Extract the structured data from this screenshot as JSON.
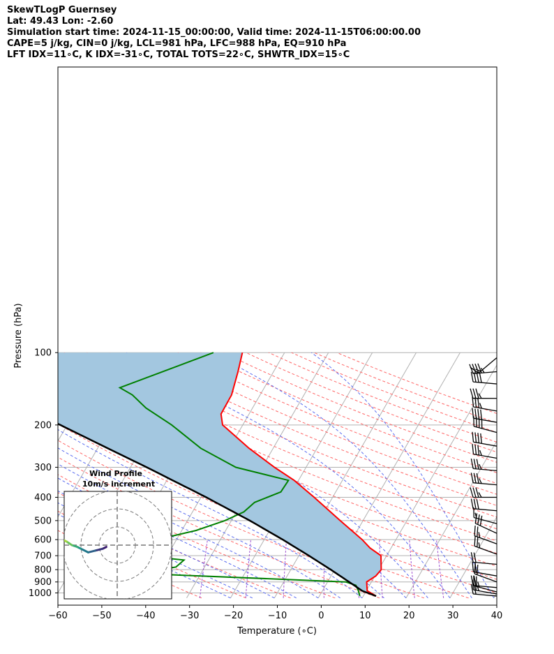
{
  "header": {
    "line1": "SkewTLogP Guernsey",
    "line2": "Lat: 49.43   Lon: -2.60",
    "line3": "Simulation start time: 2024-11-15_00:00:00, Valid time: 2024-11-15T06:00:00.00",
    "line4": "CAPE=5 j/kg, CIN=0 j/kg, LCL=981 hPa, LFC=988 hPa, EQ=910 hPa",
    "line5": "LFT IDX=11∘C, K IDX=-31∘C, TOTAL TOTS=22∘C, SHWTR_IDX=15∘C"
  },
  "colors": {
    "temperature": "#ff0000",
    "dewpoint": "#008000",
    "parcel": "#000000",
    "cape_fill": "#a3c7e0",
    "dry_adiabat": "#ff6666",
    "moist_adiabat": "#5a6cf0",
    "mixing_ratio": "#a050d0",
    "isotherm": "#b0b0b0"
  },
  "chart_data": {
    "type": "skew-t log-p",
    "xlabel": "Temperature (∘C)",
    "ylabel": "Pressure (hPa)",
    "xlim": [
      -60,
      40
    ],
    "ylim": [
      1050,
      100
    ],
    "y_scale": "log",
    "grid": true,
    "x_ticks": [
      "−60",
      "−50",
      "−40",
      "−30",
      "−20",
      "−10",
      "0",
      "10",
      "20",
      "30",
      "40"
    ],
    "y_ticks": [
      "100",
      "200",
      "300",
      "400",
      "500",
      "600",
      "700",
      "800",
      "900",
      "1000"
    ],
    "temperature_profile": [
      {
        "p": 1030,
        "t": 12.9
      },
      {
        "p": 980,
        "t": 10.2
      },
      {
        "p": 900,
        "t": 8.9
      },
      {
        "p": 850,
        "t": 10.2
      },
      {
        "p": 800,
        "t": 10.6
      },
      {
        "p": 700,
        "t": 8.7
      },
      {
        "p": 650,
        "t": 5.2
      },
      {
        "p": 600,
        "t": 2.3
      },
      {
        "p": 500,
        "t": -5.2
      },
      {
        "p": 400,
        "t": -14.2
      },
      {
        "p": 340,
        "t": -21.0
      },
      {
        "p": 300,
        "t": -27.2
      },
      {
        "p": 250,
        "t": -35.5
      },
      {
        "p": 200,
        "t": -44.6
      },
      {
        "p": 180,
        "t": -46.4
      },
      {
        "p": 150,
        "t": -46.5
      },
      {
        "p": 120,
        "t": -48.1
      },
      {
        "p": 100,
        "t": -49.6
      }
    ],
    "dewpoint_profile": [
      {
        "p": 1030,
        "t": 9.2
      },
      {
        "p": 980,
        "t": 8.2
      },
      {
        "p": 930,
        "t": 6.9
      },
      {
        "p": 900,
        "t": 4.1
      },
      {
        "p": 830,
        "t": -44.0
      },
      {
        "p": 780,
        "t": -36.5
      },
      {
        "p": 730,
        "t": -35.6
      },
      {
        "p": 700,
        "t": -45.2
      },
      {
        "p": 640,
        "t": -52.1
      },
      {
        "p": 600,
        "t": -44.5
      },
      {
        "p": 550,
        "t": -36.8
      },
      {
        "p": 500,
        "t": -31.5
      },
      {
        "p": 460,
        "t": -28.3
      },
      {
        "p": 420,
        "t": -27.1
      },
      {
        "p": 380,
        "t": -22.5
      },
      {
        "p": 340,
        "t": -22.3
      },
      {
        "p": 300,
        "t": -36.0
      },
      {
        "p": 250,
        "t": -46.5
      },
      {
        "p": 200,
        "t": -56.2
      },
      {
        "p": 170,
        "t": -64.3
      },
      {
        "p": 150,
        "t": -69.1
      },
      {
        "p": 140,
        "t": -72.9
      },
      {
        "p": 100,
        "t": -56.2
      }
    ],
    "parcel_profile": [
      {
        "p": 1030,
        "t": 12.9
      },
      {
        "p": 981,
        "t": 9.1
      },
      {
        "p": 900,
        "t": 4.9
      },
      {
        "p": 800,
        "t": -0.9
      },
      {
        "p": 700,
        "t": -7.7
      },
      {
        "p": 600,
        "t": -15.8
      },
      {
        "p": 500,
        "t": -25.8
      },
      {
        "p": 400,
        "t": -38.8
      },
      {
        "p": 300,
        "t": -56.3
      },
      {
        "p": 250,
        "t": -67.7
      },
      {
        "p": 200,
        "t": -81.6
      },
      {
        "p": 150,
        "t": -99.2
      },
      {
        "p": 100,
        "t": -123.5
      }
    ],
    "wind_barbs": [
      {
        "p": 1030,
        "dir": 275,
        "kt": 20
      },
      {
        "p": 1010,
        "dir": 280,
        "kt": 25
      },
      {
        "p": 990,
        "dir": 285,
        "kt": 25
      },
      {
        "p": 950,
        "dir": 275,
        "kt": 20
      },
      {
        "p": 900,
        "dir": 290,
        "kt": 20
      },
      {
        "p": 850,
        "dir": 280,
        "kt": 20
      },
      {
        "p": 760,
        "dir": 275,
        "kt": 20
      },
      {
        "p": 690,
        "dir": 290,
        "kt": 25
      },
      {
        "p": 625,
        "dir": 290,
        "kt": 25
      },
      {
        "p": 565,
        "dir": 295,
        "kt": 30
      },
      {
        "p": 515,
        "dir": 285,
        "kt": 15
      },
      {
        "p": 455,
        "dir": 275,
        "kt": 30
      },
      {
        "p": 400,
        "dir": 270,
        "kt": 35
      },
      {
        "p": 355,
        "dir": 275,
        "kt": 35
      },
      {
        "p": 310,
        "dir": 275,
        "kt": 35
      },
      {
        "p": 275,
        "dir": 280,
        "kt": 35
      },
      {
        "p": 245,
        "dir": 280,
        "kt": 40
      },
      {
        "p": 215,
        "dir": 285,
        "kt": 40
      },
      {
        "p": 195,
        "dir": 280,
        "kt": 40
      },
      {
        "p": 175,
        "dir": 280,
        "kt": 35
      },
      {
        "p": 155,
        "dir": 270,
        "kt": 35
      },
      {
        "p": 135,
        "dir": 275,
        "kt": 40
      },
      {
        "p": 120,
        "dir": 265,
        "kt": 45
      },
      {
        "p": 105,
        "dir": 230,
        "kt": 15
      }
    ],
    "hodograph": {
      "title": "Wind Profile",
      "subtitle": "10m/s increment",
      "rings_ms": [
        10,
        20,
        30
      ],
      "points": [
        {
          "u": -6,
          "v": -1
        },
        {
          "u": -8,
          "v": -2
        },
        {
          "u": -12,
          "v": -3
        },
        {
          "u": -16,
          "v": -4
        },
        {
          "u": -20,
          "v": -2
        },
        {
          "u": -22,
          "v": -1
        },
        {
          "u": -25,
          "v": 0
        },
        {
          "u": -28,
          "v": 2
        },
        {
          "u": -30,
          "v": 3
        },
        {
          "u": -32,
          "v": 5
        }
      ]
    }
  }
}
